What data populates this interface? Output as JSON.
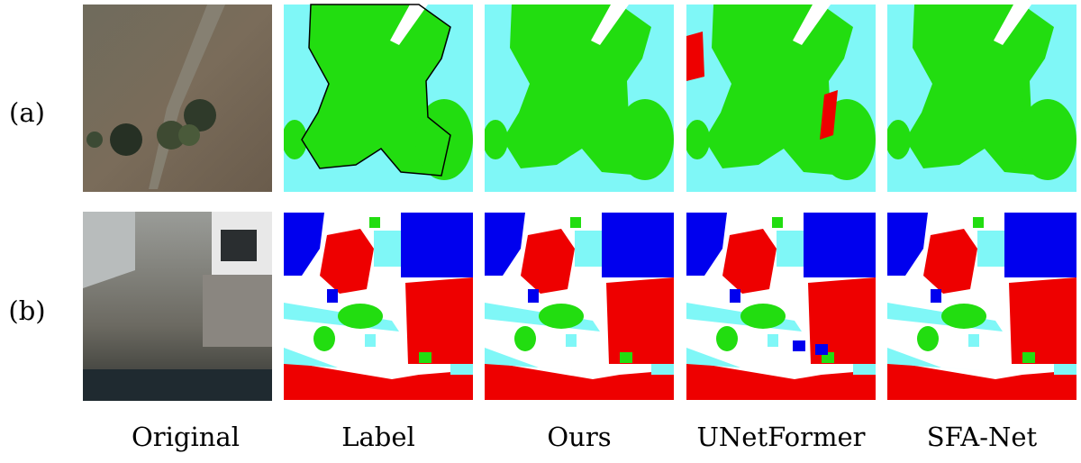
{
  "row_labels": [
    "(a)",
    "(b)"
  ],
  "column_labels": [
    "Original",
    "Label",
    "Ours",
    "UNetFormer",
    "SFA-Net"
  ]
}
